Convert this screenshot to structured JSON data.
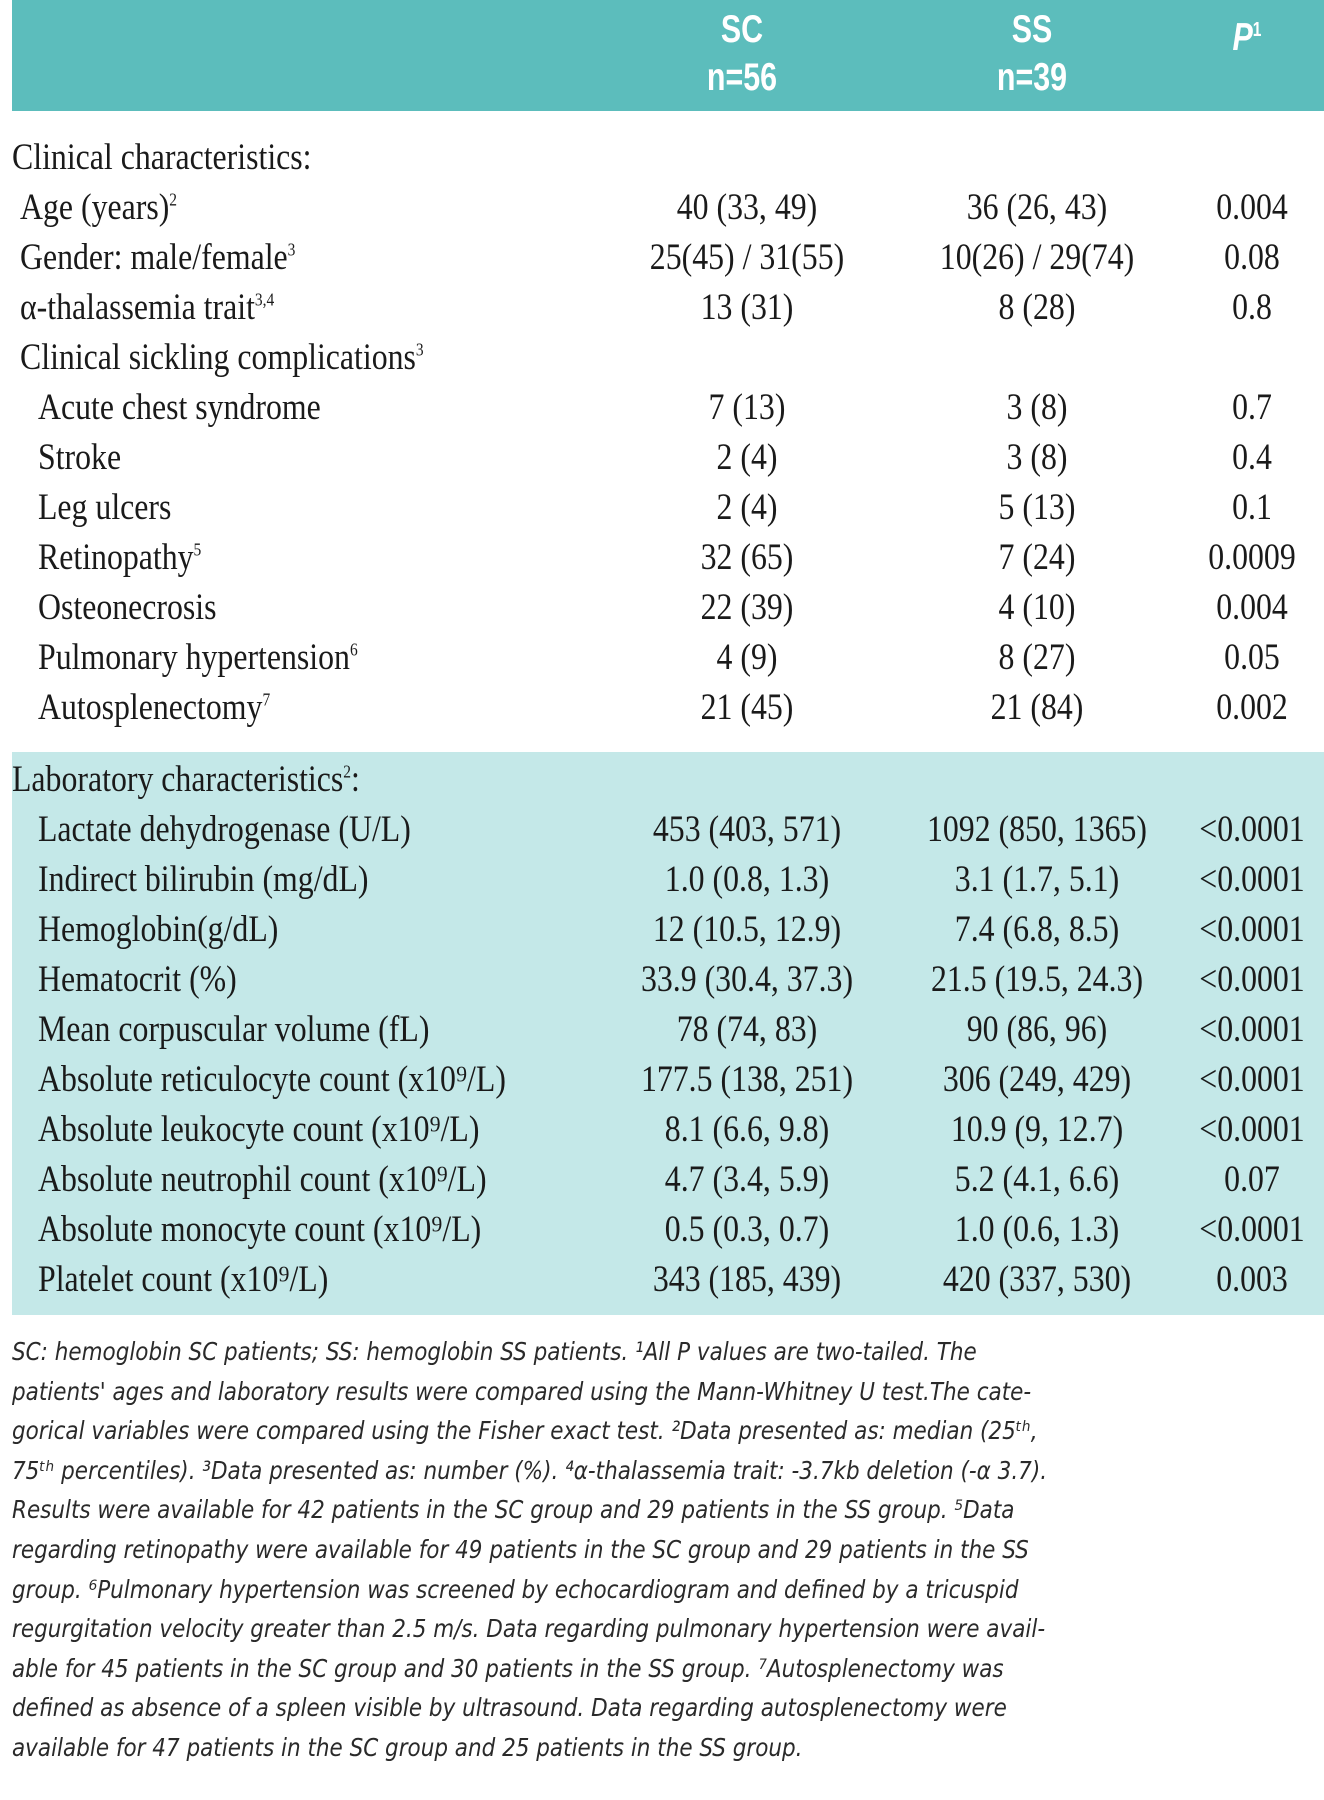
{
  "header": {
    "sc_title": "SC",
    "sc_n": "n=56",
    "ss_title": "SS",
    "ss_n": "n=39",
    "p_title": "P",
    "p_sup": "1"
  },
  "clinical": {
    "heading": "Clinical characteristics:",
    "rows": [
      {
        "label": "Age (years)",
        "sup": "2",
        "sc": "40 (33, 49)",
        "ss": "36 (26, 43)",
        "p": "0.004"
      },
      {
        "label": "Gender: male/female",
        "sup": "3",
        "sc": "25(45) / 31(55)",
        "ss": "10(26) / 29(74)",
        "p": "0.08"
      },
      {
        "label": "α-thalassemia trait",
        "sup": "3,4",
        "sc": "13 (31)",
        "ss": "8 (28)",
        "p": "0.8"
      },
      {
        "label": "Clinical sickling complications",
        "sup": "3",
        "sc": "",
        "ss": "",
        "p": ""
      },
      {
        "label": "Acute chest syndrome",
        "sup": "",
        "sc": "7 (13)",
        "ss": "3 (8)",
        "p": "0.7"
      },
      {
        "label": "Stroke",
        "sup": "",
        "sc": "2 (4)",
        "ss": "3 (8)",
        "p": "0.4"
      },
      {
        "label": "Leg ulcers",
        "sup": "",
        "sc": "2 (4)",
        "ss": "5 (13)",
        "p": "0.1"
      },
      {
        "label": "Retinopathy",
        "sup": "5",
        "sc": "32 (65)",
        "ss": "7 (24)",
        "p": "0.0009"
      },
      {
        "label": "Osteonecrosis",
        "sup": "",
        "sc": "22 (39)",
        "ss": "4 (10)",
        "p": "0.004"
      },
      {
        "label": "Pulmonary hypertension",
        "sup": "6",
        "sc": "4 (9)",
        "ss": "8 (27)",
        "p": "0.05"
      },
      {
        "label": "Autosplenectomy",
        "sup": "7",
        "sc": "21 (45)",
        "ss": "21 (84)",
        "p": "0.002"
      }
    ]
  },
  "laboratory": {
    "heading": "Laboratory characteristics",
    "heading_sup": "2",
    "rows": [
      {
        "label": "Lactate dehydrogenase (U/L)",
        "sc": "453 (403, 571)",
        "ss": "1092 (850, 1365)",
        "p": "<0.0001"
      },
      {
        "label": "Indirect bilirubin (mg/dL)",
        "sc": "1.0 (0.8, 1.3)",
        "ss": "3.1 (1.7, 5.1)",
        "p": "<0.0001"
      },
      {
        "label": "Hemoglobin(g/dL)",
        "sc": "12 (10.5, 12.9)",
        "ss": "7.4 (6.8, 8.5)",
        "p": "<0.0001"
      },
      {
        "label": "Hematocrit (%)",
        "sc": "33.9 (30.4, 37.3)",
        "ss": "21.5 (19.5, 24.3)",
        "p": "<0.0001"
      },
      {
        "label": "Mean corpuscular volume (fL)",
        "sc": "78 (74, 83)",
        "ss": "90 (86, 96)",
        "p": "<0.0001"
      },
      {
        "label": "Absolute reticulocyte count (x10⁹/L)",
        "sc": "177.5 (138, 251)",
        "ss": "306 (249, 429)",
        "p": "<0.0001"
      },
      {
        "label": "Absolute leukocyte count (x10⁹/L)",
        "sc": "8.1 (6.6, 9.8)",
        "ss": "10.9 (9, 12.7)",
        "p": "<0.0001"
      },
      {
        "label": "Absolute neutrophil count (x10⁹/L)",
        "sc": "4.7 (3.4, 5.9)",
        "ss": "5.2 (4.1, 6.6)",
        "p": "0.07"
      },
      {
        "label": "Absolute monocyte count (x10⁹/L)",
        "sc": "0.5 (0.3, 0.7)",
        "ss": "1.0 (0.6, 1.3)",
        "p": "<0.0001"
      },
      {
        "label": "Platelet count (x10⁹/L)",
        "sc": "343 (185, 439)",
        "ss": "420 (337, 530)",
        "p": "0.003"
      }
    ]
  },
  "footnote": [
    "SC: hemoglobin SC patients; SS: hemoglobin SS patients. ¹All P values are two-tailed. The",
    "patients' ages and laboratory results were compared using the Mann-Whitney U test.The cate-",
    "gorical variables were compared using the Fisher exact test. ²Data presented as: median (25ᵗʰ,",
    "75ᵗʰ percentiles). ³Data presented as: number (%). ⁴α-thalassemia trait: -3.7kb deletion (-α 3.7).",
    "Results were available for 42 patients in the SC group and 29 patients in the SS group. ⁵Data",
    "regarding retinopathy were available for 49 patients in the SC group and 29 patients in the SS",
    "group. ⁶Pulmonary hypertension was screened by echocardiogram and defined by a tricuspid",
    "regurgitation velocity greater than 2.5 m/s. Data regarding pulmonary hypertension were avail-",
    "able for 45 patients in the SC group and 30 patients in the SS group. ⁷Autosplenectomy was",
    "defined as absence of a spleen visible by ultrasound. Data regarding autosplenectomy were",
    "available for 47 patients in the SC group and 25 patients in the SS group."
  ]
}
